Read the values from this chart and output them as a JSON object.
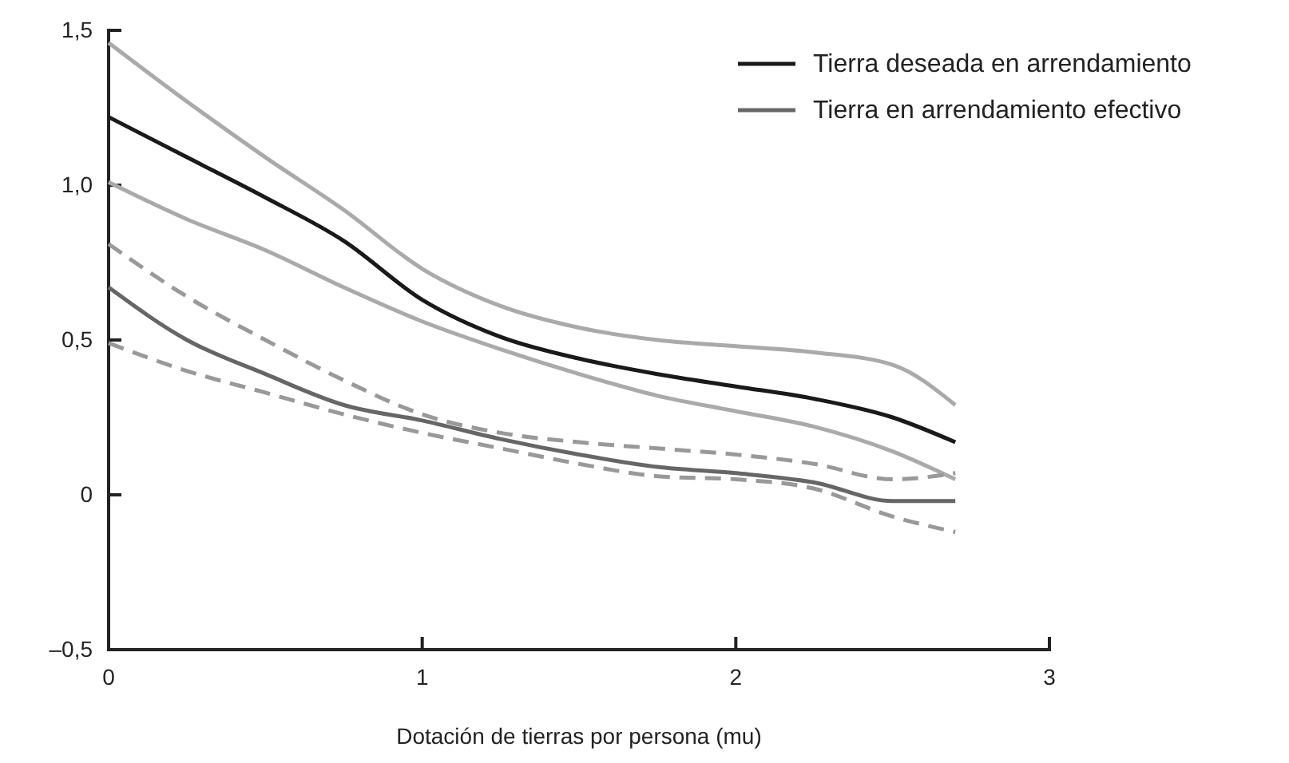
{
  "chart_data": {
    "type": "line",
    "xlabel": "Dotación de tierras por persona (mu)",
    "x": [
      0,
      0.25,
      0.5,
      0.75,
      1,
      1.25,
      1.5,
      1.75,
      2,
      2.25,
      2.5,
      2.7
    ],
    "xlim": [
      0,
      3
    ],
    "xticks": [
      0,
      1,
      2,
      3
    ],
    "ylim": [
      -0.5,
      1.5
    ],
    "yticks": [
      {
        "value": -0.5,
        "label": "–0,5"
      },
      0,
      {
        "value": 0.5,
        "label": "0,5"
      },
      {
        "value": 1,
        "label": "1,0"
      },
      {
        "value": 1.5,
        "label": "1,5"
      }
    ],
    "grid": false,
    "legend": "top right",
    "marker": "none",
    "series": [
      {
        "color": "#aaaaaa",
        "line_style": "solid",
        "values": [
          1.46,
          1.27,
          1.09,
          0.92,
          0.73,
          0.61,
          0.54,
          0.5,
          0.48,
          0.46,
          0.42,
          0.29
        ]
      },
      {
        "color": "#aaaaaa",
        "line_style": "solid",
        "values": [
          1.01,
          0.89,
          0.79,
          0.67,
          0.56,
          0.47,
          0.39,
          0.32,
          0.27,
          0.22,
          0.14,
          0.05
        ]
      },
      {
        "color": "#999999",
        "line_style": "dashed",
        "values": [
          0.81,
          0.64,
          0.5,
          0.37,
          0.26,
          0.2,
          0.17,
          0.15,
          0.13,
          0.1,
          0.05,
          0.07
        ]
      },
      {
        "color": "#999999",
        "line_style": "dashed",
        "values": [
          0.49,
          0.4,
          0.33,
          0.26,
          0.2,
          0.15,
          0.1,
          0.06,
          0.05,
          0.02,
          -0.07,
          -0.12
        ]
      },
      {
        "name": "Tierra deseada en arrendamiento",
        "color": "#1a1a1a",
        "line_style": "solid",
        "values": [
          1.22,
          1.09,
          0.96,
          0.82,
          0.63,
          0.51,
          0.44,
          0.39,
          0.35,
          0.31,
          0.25,
          0.17
        ]
      },
      {
        "name": "Tierra en arrendamiento efectivo",
        "color": "#666666",
        "line_style": "solid",
        "values": [
          0.67,
          0.5,
          0.39,
          0.29,
          0.24,
          0.18,
          0.13,
          0.09,
          0.07,
          0.04,
          -0.02,
          -0.02
        ]
      }
    ]
  }
}
